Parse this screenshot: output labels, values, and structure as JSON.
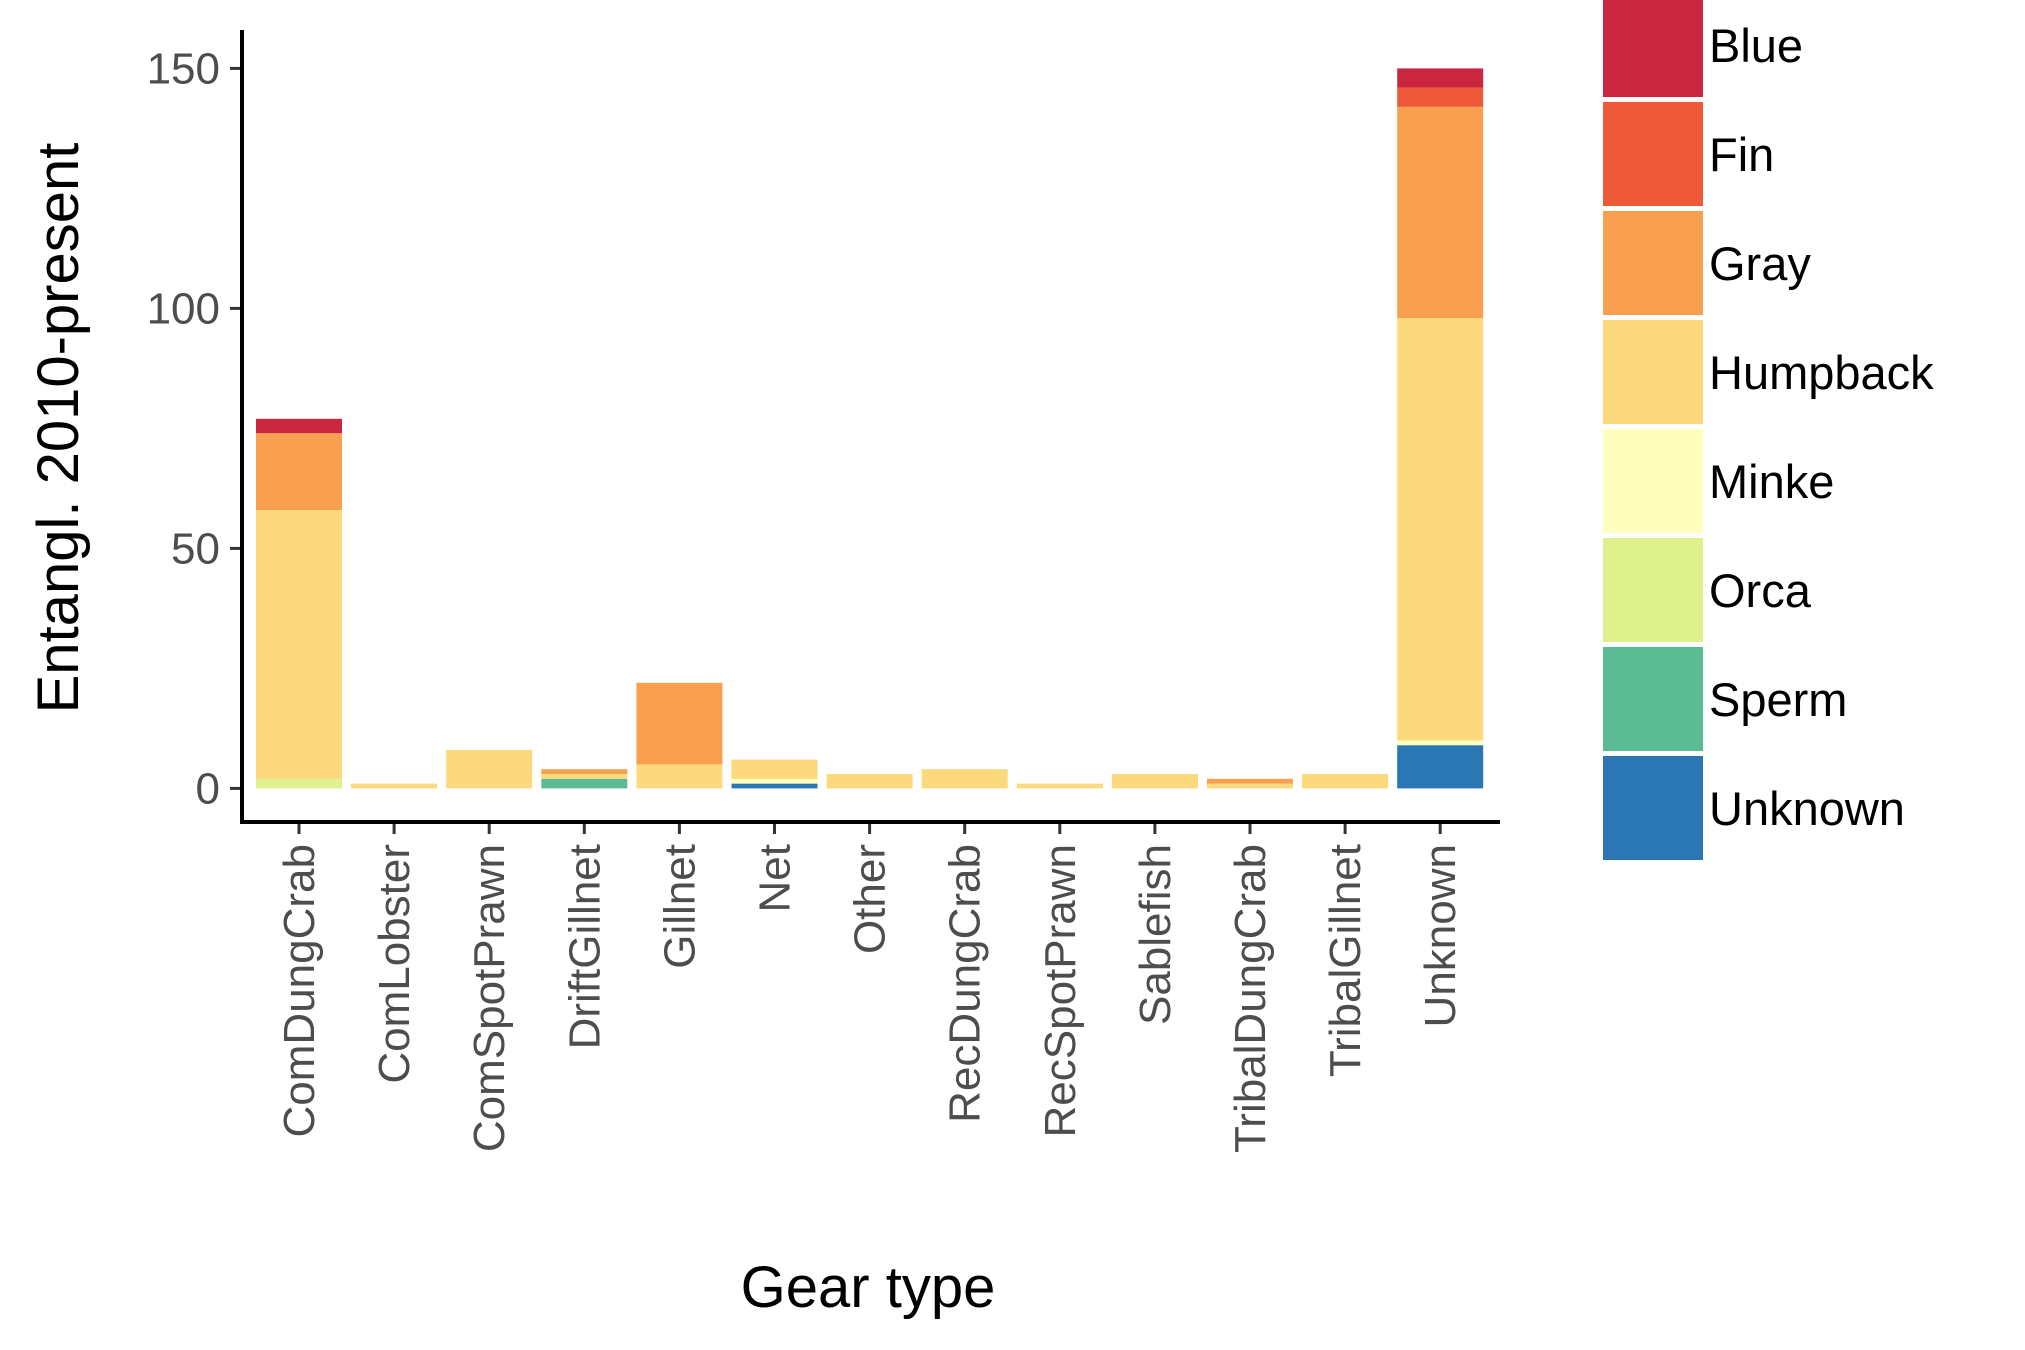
{
  "chart_data": {
    "type": "bar",
    "stacked": true,
    "xlabel": "Gear type",
    "ylabel": "Entangl. 2010-present",
    "ylim": [
      -7,
      158
    ],
    "yticks": [
      0,
      50,
      100,
      150
    ],
    "grid": false,
    "legend_position": "right",
    "categories": [
      "ComDungCrab",
      "ComLobster",
      "ComSpotPrawn",
      "DriftGillnet",
      "Gillnet",
      "Net",
      "Other",
      "RecDungCrab",
      "RecSpotPrawn",
      "Sablefish",
      "TribalDungCrab",
      "TribalGillnet",
      "Unknown"
    ],
    "series": [
      {
        "name": "Unknown",
        "color": "#2B77B3",
        "values": [
          0,
          0,
          0,
          0,
          0,
          1,
          0,
          0,
          0,
          0,
          0,
          0,
          9
        ]
      },
      {
        "name": "Sperm",
        "color": "#5BBB94",
        "values": [
          0,
          0,
          0,
          2,
          0,
          0,
          0,
          0,
          0,
          0,
          0,
          0,
          0
        ]
      },
      {
        "name": "Orca",
        "color": "#DFF18D",
        "values": [
          2,
          0,
          0,
          0,
          0,
          0,
          0,
          0,
          0,
          0,
          0,
          0,
          0
        ]
      },
      {
        "name": "Minke",
        "color": "#FEFEBD",
        "values": [
          0,
          0,
          0,
          0,
          0,
          1,
          0,
          0,
          0,
          0,
          0,
          0,
          1
        ]
      },
      {
        "name": "Humpback",
        "color": "#FBD97C",
        "values": [
          56,
          1,
          8,
          1,
          5,
          4,
          3,
          4,
          1,
          3,
          1,
          3,
          88
        ]
      },
      {
        "name": "Gray",
        "color": "#F99F50",
        "values": [
          16,
          0,
          0,
          1,
          17,
          0,
          0,
          0,
          0,
          0,
          1,
          0,
          44
        ]
      },
      {
        "name": "Fin",
        "color": "#EE5A38",
        "values": [
          0,
          0,
          0,
          0,
          0,
          0,
          0,
          0,
          0,
          0,
          0,
          0,
          4
        ]
      },
      {
        "name": "Blue",
        "color": "#CB263F",
        "values": [
          3,
          0,
          0,
          0,
          0,
          0,
          0,
          0,
          0,
          0,
          0,
          0,
          4
        ]
      }
    ],
    "legend": [
      "Blue",
      "Fin",
      "Gray",
      "Humpback",
      "Minke",
      "Orca",
      "Sperm",
      "Unknown"
    ]
  }
}
